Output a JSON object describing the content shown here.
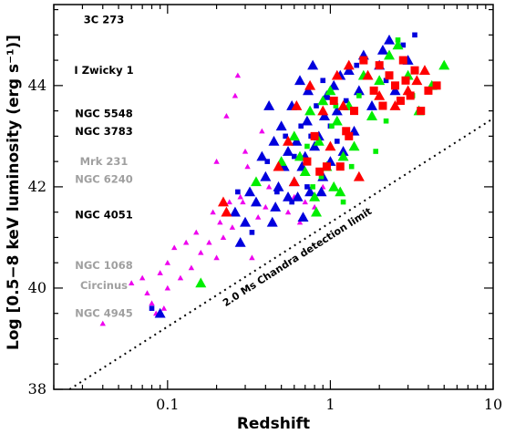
{
  "chart_data": {
    "type": "scatter",
    "xlabel": "Redshift",
    "ylabel": "Log [0.5−8 keV luminosity (erg s⁻¹)]",
    "xscale": "log",
    "xlim": [
      0.02,
      10
    ],
    "ylim": [
      38,
      45.6
    ],
    "x_ticks": [
      {
        "value": 0.1,
        "label": "0.1"
      },
      {
        "value": 1,
        "label": "1"
      },
      {
        "value": 10,
        "label": "10"
      }
    ],
    "y_ticks": [
      {
        "value": 38,
        "label": "38"
      },
      {
        "value": 40,
        "label": "40"
      },
      {
        "value": 42,
        "label": "42"
      },
      {
        "value": 44,
        "label": "44"
      }
    ],
    "grid": false,
    "detection_limit": {
      "label": "2.0 Ms Chandra detection limit",
      "points": [
        [
          0.025,
          38.0
        ],
        [
          10,
          43.35
        ]
      ]
    },
    "local_agn_labels": [
      {
        "text": "3C 273",
        "y": 45.3,
        "color": "#000000"
      },
      {
        "text": "I Zwicky 1",
        "y": 44.3,
        "color": "#000000"
      },
      {
        "text": "NGC 5548",
        "y": 43.45,
        "color": "#000000"
      },
      {
        "text": "NGC 3783",
        "y": 43.1,
        "color": "#000000"
      },
      {
        "text": "Mrk 231",
        "y": 42.5,
        "color": "#a0a0a0"
      },
      {
        "text": "NGC 6240",
        "y": 42.15,
        "color": "#a0a0a0"
      },
      {
        "text": "NGC 4051",
        "y": 41.45,
        "color": "#000000"
      },
      {
        "text": "NGC 1068",
        "y": 40.45,
        "color": "#a0a0a0"
      },
      {
        "text": "Circinus",
        "y": 40.05,
        "color": "#a0a0a0"
      },
      {
        "text": "NGC 4945",
        "y": 39.5,
        "color": "#a0a0a0"
      }
    ],
    "series": [
      {
        "color": "#ee00ee",
        "marker": "triangle-small",
        "points": [
          [
            0.04,
            39.3
          ],
          [
            0.06,
            40.1
          ],
          [
            0.07,
            40.2
          ],
          [
            0.075,
            39.9
          ],
          [
            0.08,
            39.7
          ],
          [
            0.085,
            39.5
          ],
          [
            0.09,
            40.3
          ],
          [
            0.095,
            39.6
          ],
          [
            0.1,
            40.0
          ],
          [
            0.1,
            40.5
          ],
          [
            0.11,
            40.8
          ],
          [
            0.12,
            40.2
          ],
          [
            0.13,
            40.9
          ],
          [
            0.14,
            40.4
          ],
          [
            0.15,
            41.1
          ],
          [
            0.16,
            40.7
          ],
          [
            0.18,
            40.9
          ],
          [
            0.19,
            41.5
          ],
          [
            0.2,
            40.6
          ],
          [
            0.2,
            42.5
          ],
          [
            0.21,
            41.3
          ],
          [
            0.22,
            41.0
          ],
          [
            0.23,
            43.4
          ],
          [
            0.24,
            41.7
          ],
          [
            0.25,
            41.2
          ],
          [
            0.26,
            43.8
          ],
          [
            0.27,
            44.2
          ],
          [
            0.28,
            41.8
          ],
          [
            0.3,
            42.7
          ],
          [
            0.3,
            41.3
          ],
          [
            0.32,
            41.9
          ],
          [
            0.33,
            40.6
          ],
          [
            0.35,
            42.1
          ],
          [
            0.36,
            41.4
          ],
          [
            0.38,
            43.1
          ],
          [
            0.4,
            41.6
          ],
          [
            0.42,
            42.0
          ],
          [
            0.45,
            41.3
          ],
          [
            0.5,
            42.4
          ],
          [
            0.55,
            41.5
          ],
          [
            0.6,
            41.8
          ],
          [
            0.65,
            41.3
          ],
          [
            0.7,
            41.7
          ],
          [
            0.8,
            41.6
          ],
          [
            0.9,
            42.0
          ],
          [
            0.29,
            41.7
          ],
          [
            0.31,
            42.4
          ]
        ]
      },
      {
        "color": "#0000dd",
        "marker": "triangle",
        "points": [
          [
            0.09,
            39.5
          ],
          [
            0.26,
            41.5
          ],
          [
            0.28,
            40.9
          ],
          [
            0.3,
            41.3
          ],
          [
            0.32,
            41.9
          ],
          [
            0.35,
            41.7
          ],
          [
            0.38,
            42.6
          ],
          [
            0.4,
            42.2
          ],
          [
            0.42,
            43.6
          ],
          [
            0.44,
            41.3
          ],
          [
            0.45,
            42.9
          ],
          [
            0.48,
            42.0
          ],
          [
            0.5,
            43.2
          ],
          [
            0.52,
            42.4
          ],
          [
            0.55,
            41.8
          ],
          [
            0.58,
            43.6
          ],
          [
            0.6,
            42.1
          ],
          [
            0.62,
            42.9
          ],
          [
            0.65,
            44.1
          ],
          [
            0.68,
            41.4
          ],
          [
            0.7,
            42.6
          ],
          [
            0.72,
            43.3
          ],
          [
            0.75,
            41.9
          ],
          [
            0.78,
            44.4
          ],
          [
            0.8,
            42.8
          ],
          [
            0.85,
            43.0
          ],
          [
            0.9,
            42.2
          ],
          [
            0.95,
            43.8
          ],
          [
            1.0,
            42.5
          ],
          [
            1.05,
            44.0
          ],
          [
            1.1,
            43.5
          ],
          [
            1.2,
            42.7
          ],
          [
            1.3,
            44.3
          ],
          [
            1.4,
            43.1
          ],
          [
            1.6,
            44.6
          ],
          [
            1.8,
            43.6
          ],
          [
            2.0,
            44.4
          ],
          [
            2.3,
            44.9
          ],
          [
            2.5,
            43.9
          ],
          [
            3.0,
            44.5
          ],
          [
            0.55,
            42.7
          ],
          [
            0.63,
            41.8
          ],
          [
            0.73,
            43.9
          ],
          [
            0.88,
            41.9
          ],
          [
            1.15,
            44.2
          ],
          [
            1.5,
            43.9
          ],
          [
            2.1,
            44.7
          ],
          [
            0.46,
            41.6
          ],
          [
            0.67,
            42.4
          ],
          [
            0.92,
            43.4
          ]
        ]
      },
      {
        "color": "#0000dd",
        "marker": "square-small",
        "points": [
          [
            0.08,
            39.6
          ],
          [
            0.27,
            41.9
          ],
          [
            0.33,
            41.1
          ],
          [
            0.41,
            42.5
          ],
          [
            0.47,
            41.9
          ],
          [
            0.53,
            43.0
          ],
          [
            0.6,
            42.6
          ],
          [
            0.66,
            43.2
          ],
          [
            0.72,
            42.0
          ],
          [
            0.82,
            43.6
          ],
          [
            0.9,
            44.1
          ],
          [
            1.0,
            43.2
          ],
          [
            1.25,
            43.7
          ],
          [
            1.45,
            44.4
          ],
          [
            2.2,
            44.1
          ],
          [
            2.8,
            44.8
          ],
          [
            3.3,
            45.0
          ],
          [
            0.58,
            41.7
          ],
          [
            0.76,
            43.0
          ],
          [
            1.1,
            42.9
          ]
        ]
      },
      {
        "color": "#00ee00",
        "marker": "triangle",
        "points": [
          [
            0.16,
            40.1
          ],
          [
            0.35,
            42.1
          ],
          [
            0.5,
            42.5
          ],
          [
            0.6,
            43.0
          ],
          [
            0.7,
            42.3
          ],
          [
            0.75,
            43.5
          ],
          [
            0.8,
            41.8
          ],
          [
            0.85,
            42.9
          ],
          [
            0.9,
            43.7
          ],
          [
            0.95,
            42.4
          ],
          [
            1.0,
            43.9
          ],
          [
            1.05,
            42.0
          ],
          [
            1.1,
            43.3
          ],
          [
            1.2,
            42.6
          ],
          [
            1.3,
            43.6
          ],
          [
            1.4,
            42.8
          ],
          [
            1.6,
            44.2
          ],
          [
            1.8,
            43.4
          ],
          [
            2.0,
            44.1
          ],
          [
            2.3,
            44.6
          ],
          [
            2.6,
            44.8
          ],
          [
            3.0,
            44.2
          ],
          [
            3.5,
            43.5
          ],
          [
            4.2,
            44.0
          ],
          [
            5.0,
            44.4
          ],
          [
            0.65,
            42.6
          ],
          [
            0.82,
            41.5
          ],
          [
            1.15,
            41.9
          ]
        ]
      },
      {
        "color": "#00ee00",
        "marker": "square-small",
        "points": [
          [
            0.72,
            42.8
          ],
          [
            0.88,
            42.2
          ],
          [
            1.02,
            43.2
          ],
          [
            1.2,
            41.7
          ],
          [
            1.35,
            42.4
          ],
          [
            1.5,
            43.8
          ],
          [
            1.9,
            42.7
          ],
          [
            2.2,
            43.3
          ],
          [
            2.6,
            44.9
          ],
          [
            3.2,
            43.8
          ],
          [
            0.78,
            42.0
          ],
          [
            1.08,
            43.6
          ]
        ]
      },
      {
        "color": "#ff0000",
        "marker": "triangle",
        "points": [
          [
            0.22,
            41.7
          ],
          [
            0.23,
            41.5
          ],
          [
            0.48,
            42.4
          ],
          [
            0.55,
            42.9
          ],
          [
            0.6,
            42.1
          ],
          [
            0.62,
            43.6
          ],
          [
            0.75,
            44.0
          ],
          [
            0.9,
            43.5
          ],
          [
            1.0,
            42.8
          ],
          [
            1.1,
            44.2
          ],
          [
            1.2,
            43.6
          ],
          [
            1.3,
            44.4
          ],
          [
            1.5,
            42.2
          ],
          [
            1.7,
            44.2
          ],
          [
            2.0,
            43.8
          ],
          [
            2.5,
            43.6
          ],
          [
            3.0,
            43.9
          ],
          [
            3.4,
            44.1
          ],
          [
            3.8,
            44.3
          ]
        ]
      },
      {
        "color": "#ff0000",
        "marker": "square",
        "points": [
          [
            0.72,
            42.5
          ],
          [
            0.8,
            43.0
          ],
          [
            0.86,
            42.3
          ],
          [
            0.95,
            42.4
          ],
          [
            1.05,
            43.7
          ],
          [
            1.15,
            42.4
          ],
          [
            1.25,
            43.1
          ],
          [
            1.4,
            43.5
          ],
          [
            1.6,
            44.5
          ],
          [
            1.85,
            43.9
          ],
          [
            2.1,
            43.6
          ],
          [
            2.3,
            44.2
          ],
          [
            2.5,
            44.0
          ],
          [
            2.7,
            43.7
          ],
          [
            2.9,
            44.1
          ],
          [
            3.1,
            43.8
          ],
          [
            3.3,
            44.3
          ],
          [
            3.6,
            43.5
          ],
          [
            4.0,
            43.9
          ],
          [
            4.5,
            44.0
          ],
          [
            1.3,
            43.0
          ],
          [
            2.0,
            44.4
          ],
          [
            2.8,
            44.5
          ]
        ]
      }
    ]
  }
}
